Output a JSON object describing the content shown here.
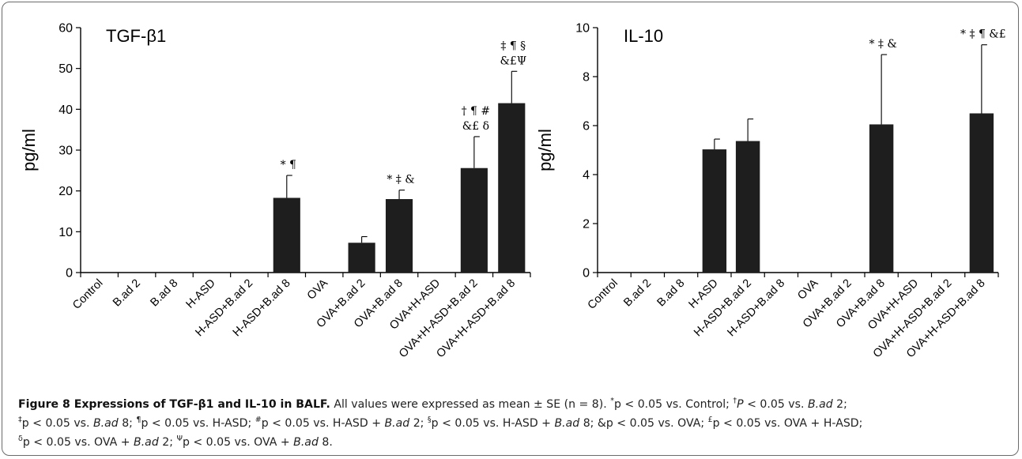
{
  "chart_data": [
    {
      "type": "bar",
      "title": "TGF-β1",
      "ylabel": "pg/ml",
      "ylim": [
        0,
        60
      ],
      "yticks": [
        0,
        10,
        20,
        30,
        40,
        50,
        60
      ],
      "categories": [
        "Control",
        "B.ad 2",
        "B.ad 8",
        "H-ASD",
        "H-ASD+B.ad 2",
        "H-ASD+B.ad 8",
        "OVA",
        "OVA+B.ad 2",
        "OVA+B.ad 8",
        "OVA+H-ASD",
        "OVA+H-ASD+B.ad 2",
        "OVA+H-ASD+B.ad 8"
      ],
      "values": [
        0,
        0,
        0,
        0,
        0,
        18.3,
        0,
        7.3,
        18.0,
        0,
        25.6,
        41.5
      ],
      "errors": [
        0,
        0,
        0,
        0,
        0,
        5.5,
        0,
        1.5,
        2.2,
        0,
        7.7,
        7.8
      ],
      "annotations": [
        {
          "index": 5,
          "lines": [
            "* ¶"
          ]
        },
        {
          "index": 8,
          "lines": [
            "* ‡ &"
          ]
        },
        {
          "index": 10,
          "lines": [
            "† ¶ #",
            "&£ δ"
          ]
        },
        {
          "index": 11,
          "lines": [
            "‡ ¶ §",
            "&£Ψ"
          ]
        }
      ]
    },
    {
      "type": "bar",
      "title": "IL-10",
      "ylabel": "pg/ml",
      "ylim": [
        0,
        10
      ],
      "yticks": [
        0,
        2,
        4,
        6,
        8,
        10
      ],
      "categories": [
        "Control",
        "B.ad 2",
        "B.ad 8",
        "H-ASD",
        "H-ASD+B.ad 2",
        "H-ASD+B.ad 8",
        "OVA",
        "OVA+B.ad 2",
        "OVA+B.ad 8",
        "OVA+H-ASD",
        "OVA+H-ASD+B.ad 2",
        "OVA+H-ASD+B.ad 8"
      ],
      "values": [
        0,
        0,
        0,
        5.03,
        5.37,
        0,
        0,
        0,
        6.05,
        0,
        0,
        6.5
      ],
      "errors": [
        0,
        0,
        0,
        0.42,
        0.9,
        0,
        0,
        0,
        2.85,
        0,
        0,
        2.8
      ],
      "annotations": [
        {
          "index": 8,
          "lines": [
            "* ‡ &"
          ]
        },
        {
          "index": 11,
          "lines": [
            "* ‡ ¶ &£"
          ]
        }
      ]
    }
  ],
  "caption": {
    "head": "Figure 8 Expressions of TGF-β1 and IL-10 in BALF.",
    "lines": [
      "All values were expressed as mean ± SE (n = 8). <sup>*</sup>p < 0.05 vs. Control; <sup>†</sup><i>P</i> < 0.05 vs. <i>B.ad</i> 2;",
      "<sup>‡</sup>p < 0.05 vs. <i>B.ad</i> 8; <sup>¶</sup>p < 0.05 vs. H-ASD; <sup>#</sup>p < 0.05 vs. H-ASD + <i>B.ad</i> 2; <sup>§</sup>p < 0.05 vs. H-ASD + <i>B.ad</i> 8; &p < 0.05 vs. OVA; <sup>£</sup>p < 0.05 vs. OVA + H-ASD;",
      "<sup>δ</sup>p < 0.05 vs. OVA + <i>B.ad</i> 2; <sup>Ψ</sup>p < 0.05 vs. OVA + <i>B.ad</i> 8."
    ]
  }
}
